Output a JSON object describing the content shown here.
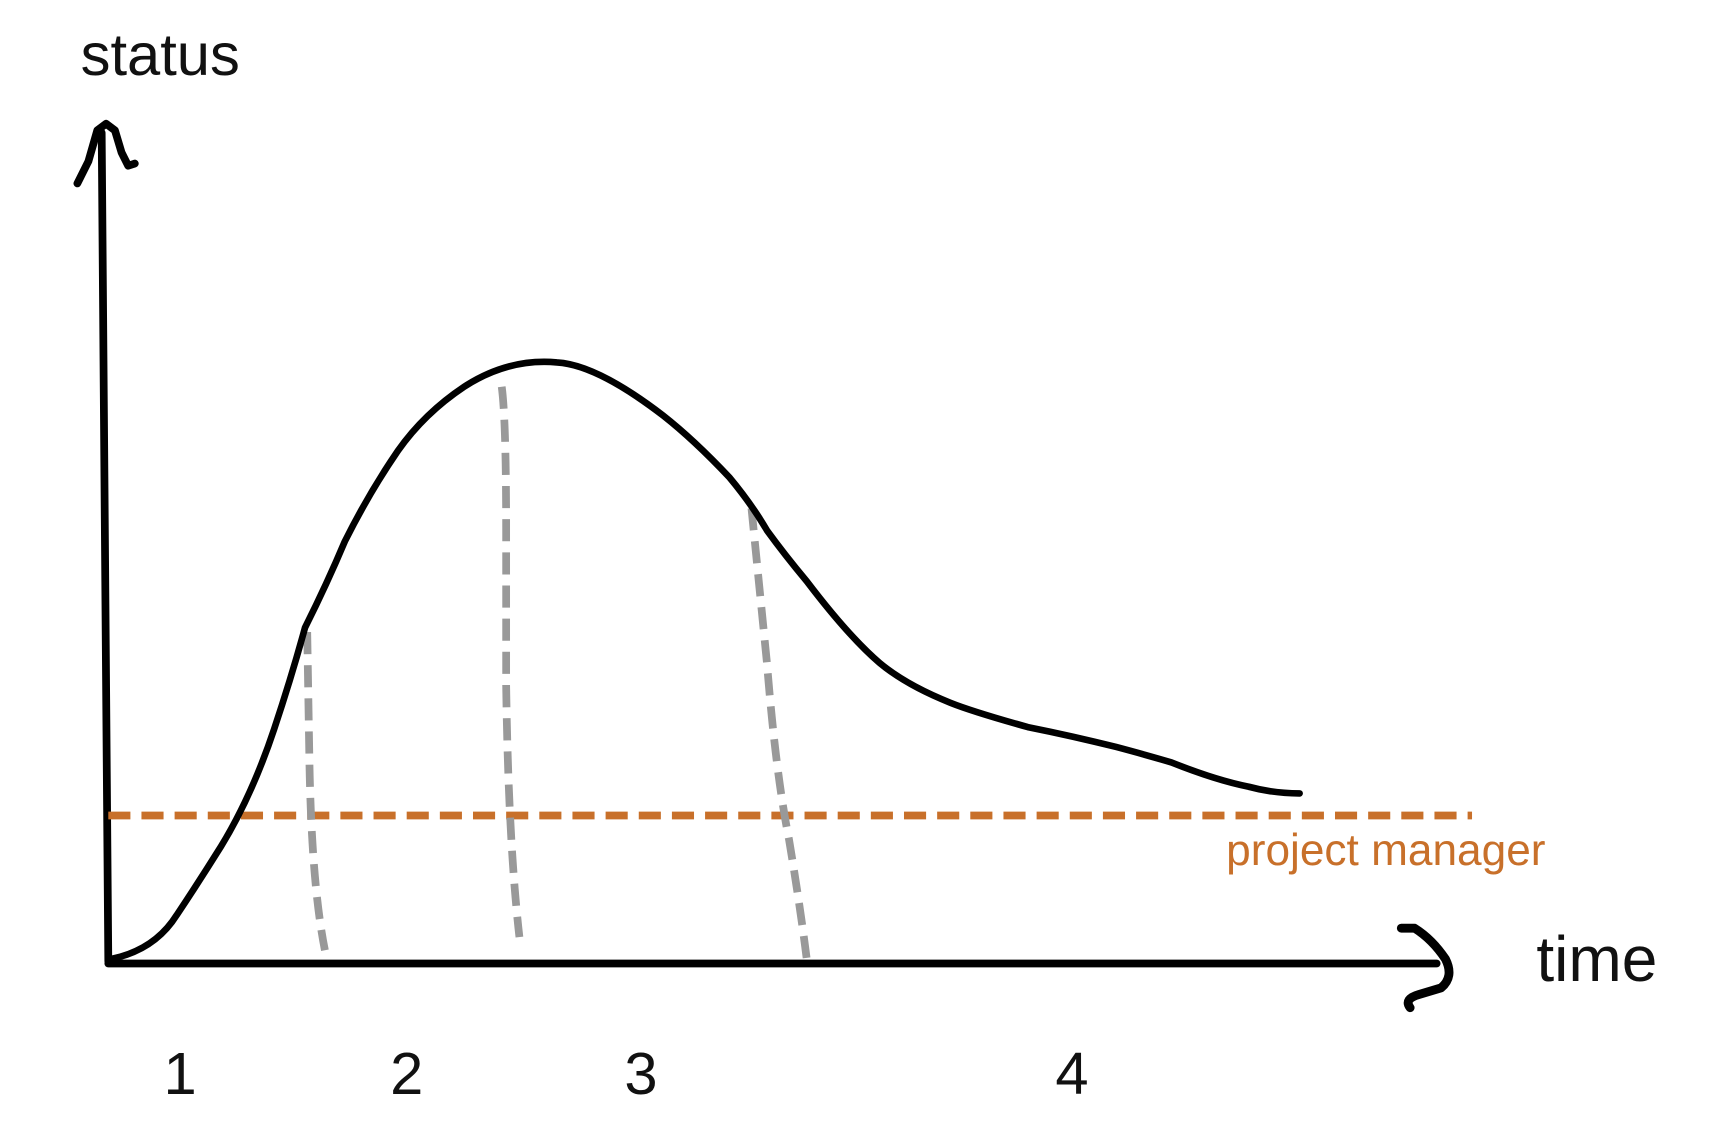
{
  "axes": {
    "y_label": "status",
    "x_label": "time"
  },
  "phases": [
    "1",
    "2",
    "3",
    "4"
  ],
  "threshold": {
    "label": "project manager"
  }
}
